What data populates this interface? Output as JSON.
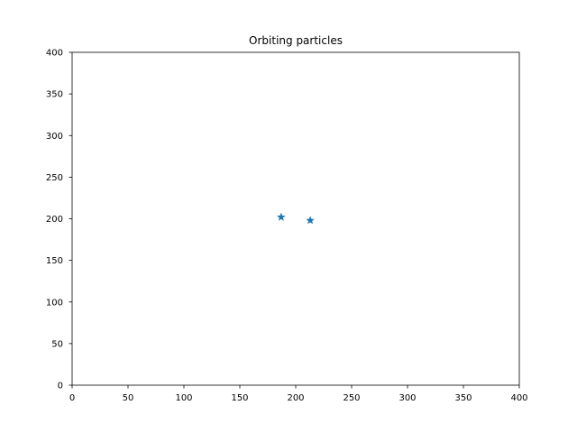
{
  "chart_data": {
    "type": "scatter",
    "title": "Orbiting particles",
    "xlabel": "",
    "ylabel": "",
    "xlim": [
      0,
      400
    ],
    "ylim": [
      0,
      400
    ],
    "x_ticks": [
      0,
      50,
      100,
      150,
      200,
      250,
      300,
      350,
      400
    ],
    "y_ticks": [
      0,
      50,
      100,
      150,
      200,
      250,
      300,
      350,
      400
    ],
    "grid": false,
    "legend": "none",
    "marker": "star",
    "series": [
      {
        "color": "#1f77b4",
        "points": [
          {
            "x": 187,
            "y": 202
          },
          {
            "x": 213,
            "y": 198
          }
        ]
      }
    ]
  }
}
